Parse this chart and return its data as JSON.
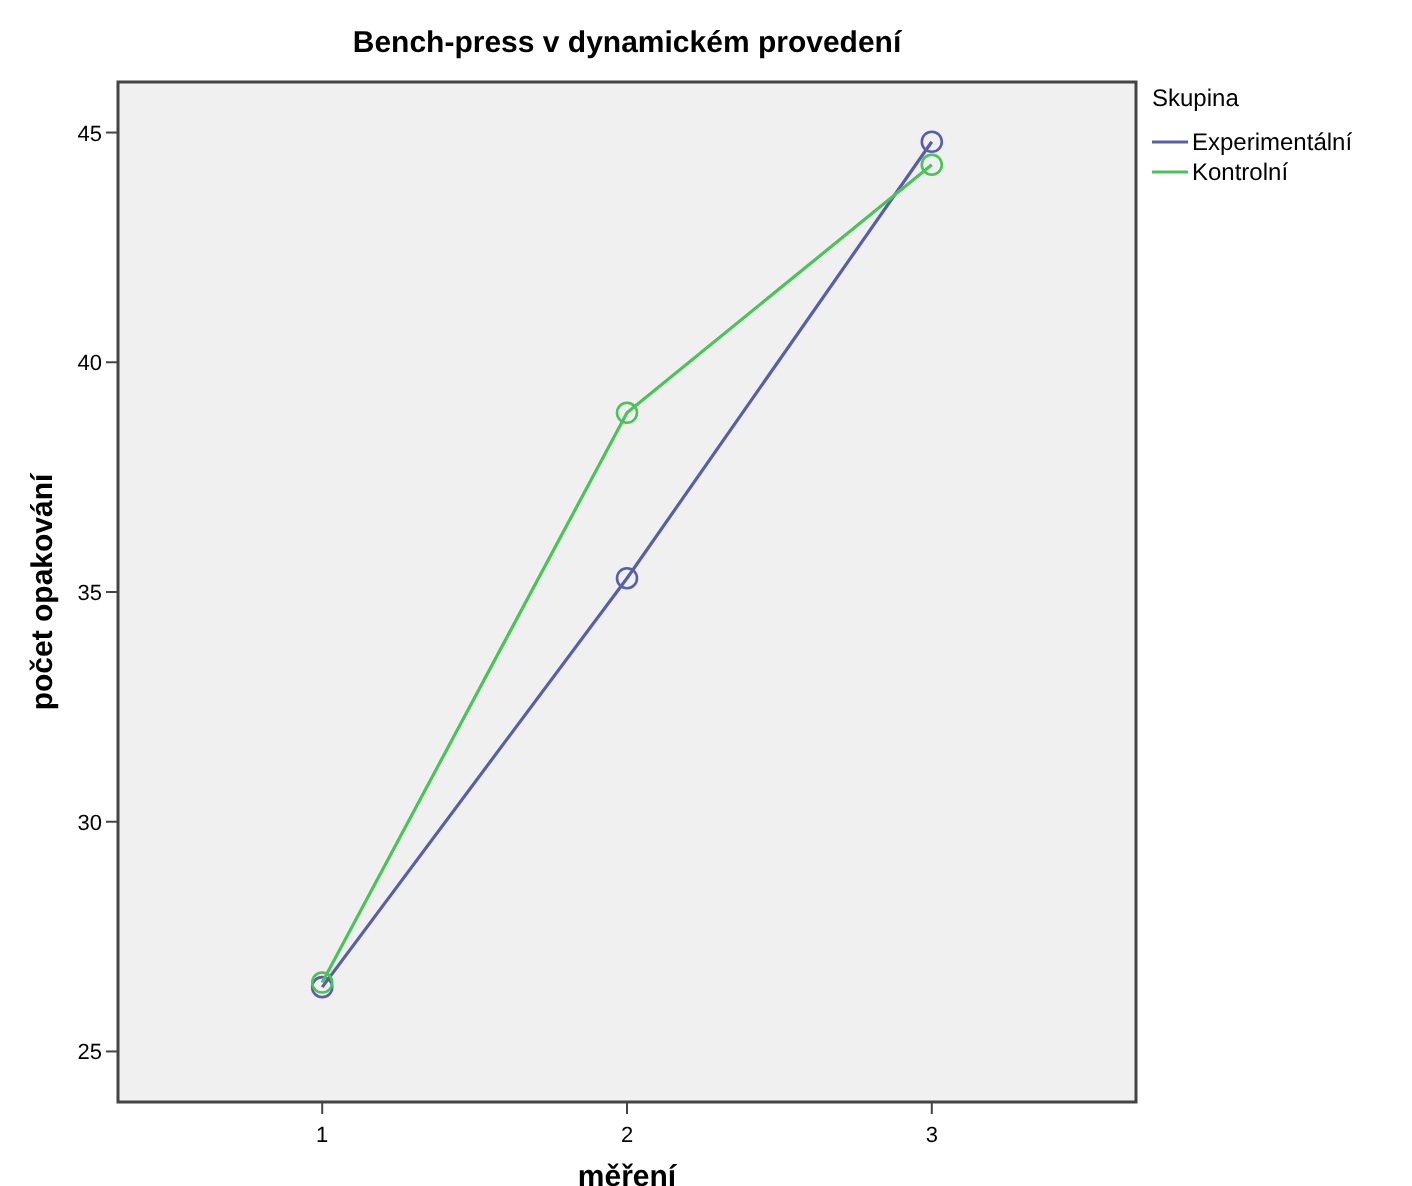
{
  "chart_data": {
    "type": "line",
    "title": "Bench-press v dynamickém provedení",
    "xlabel": "měření",
    "ylabel": "počet opakování",
    "legend_title": "Skupina",
    "x": [
      1,
      2,
      3
    ],
    "xlim": [
      0.33,
      3.67
    ],
    "xticks": [
      1,
      2,
      3
    ],
    "ylim": [
      23.9,
      46.1
    ],
    "yticks": [
      25,
      30,
      35,
      40,
      45
    ],
    "grid": false,
    "legend": "top right",
    "marker": "circle",
    "line_style": "solid",
    "series": [
      {
        "name": "Experimentální",
        "color": "#5a5ea8",
        "values": [
          26.4,
          35.3,
          44.8
        ]
      },
      {
        "name": "Kontrolní",
        "color": "#4cc25a",
        "values": [
          26.5,
          38.9,
          44.3
        ]
      }
    ]
  }
}
